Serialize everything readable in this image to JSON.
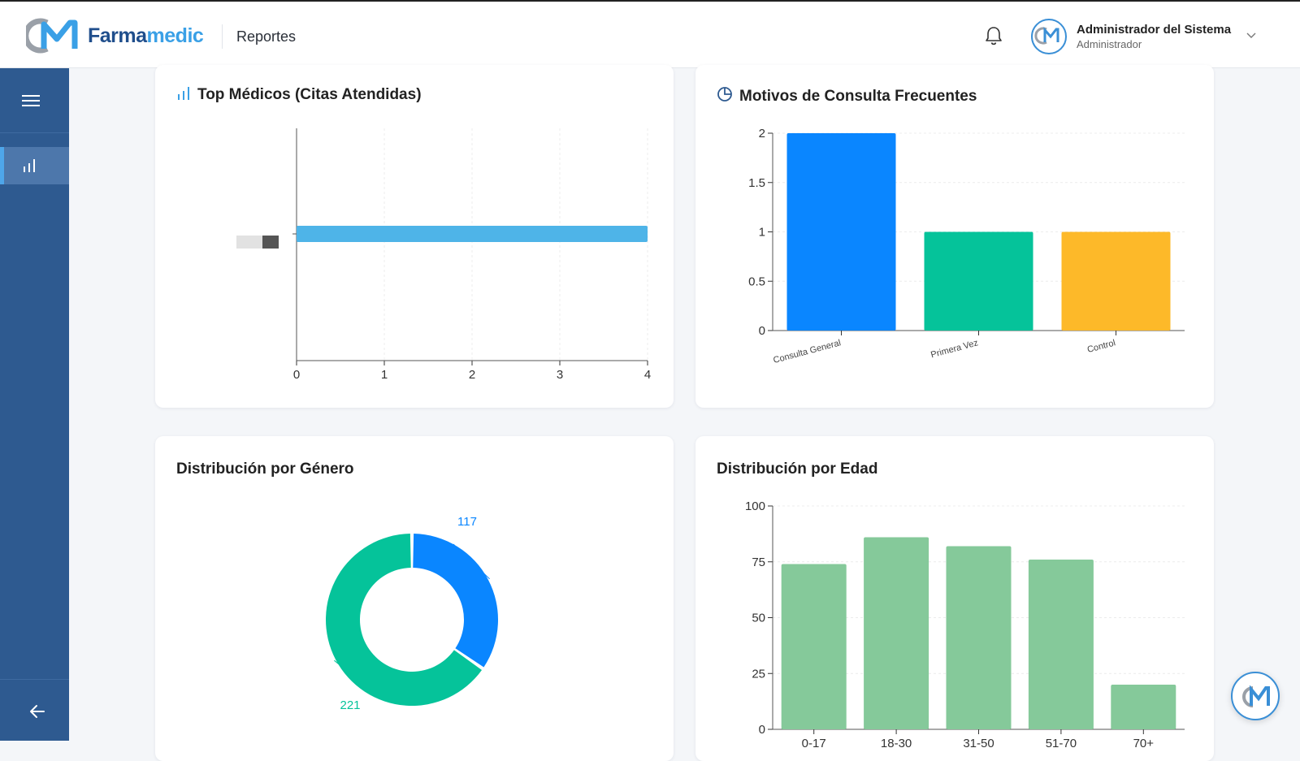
{
  "header": {
    "brand_part1": "Farma",
    "brand_part2": "medic",
    "page_title": "Reportes",
    "user_name": "Administrador del Sistema",
    "user_role": "Administrador"
  },
  "colors": {
    "sidebar": "#2e5a90",
    "accent": "#3aa0e6"
  },
  "cards": {
    "top_medicos": {
      "title": "Top Médicos (Citas Atendidas)"
    },
    "motivos": {
      "title": "Motivos de Consulta Frecuentes"
    },
    "genero": {
      "title": "Distribución por Género"
    },
    "edad": {
      "title": "Distribución por Edad"
    }
  },
  "chart_data": [
    {
      "type": "bar",
      "orientation": "horizontal",
      "title": "Top Médicos (Citas Atendidas)",
      "categories": [
        ""
      ],
      "values": [
        4
      ],
      "xlim": [
        0,
        4
      ],
      "x_ticks": [
        "0",
        "1",
        "2",
        "3",
        "4"
      ],
      "color": "#4eb4e8"
    },
    {
      "type": "bar",
      "title": "Motivos de Consulta Frecuentes",
      "categories": [
        "Consulta General",
        "Primera Vez",
        "Control"
      ],
      "values": [
        2,
        1,
        1
      ],
      "ylim": [
        0,
        2
      ],
      "y_ticks": [
        "0",
        "0.5",
        "1",
        "1.5",
        "2"
      ],
      "colors": [
        "#0a86ff",
        "#05c39a",
        "#fdb929"
      ]
    },
    {
      "type": "pie",
      "title": "Distribución por Género",
      "values": [
        117,
        221
      ],
      "labels": [
        "117",
        "221"
      ],
      "colors": [
        "#0a86ff",
        "#05c39a"
      ]
    },
    {
      "type": "bar",
      "title": "Distribución por Edad",
      "categories": [
        "0-17",
        "18-30",
        "31-50",
        "51-70",
        "70+"
      ],
      "values": [
        74,
        86,
        82,
        76,
        20
      ],
      "ylim": [
        0,
        100
      ],
      "y_ticks": [
        "0",
        "25",
        "50",
        "75",
        "100"
      ],
      "color": "#85c99a"
    }
  ]
}
